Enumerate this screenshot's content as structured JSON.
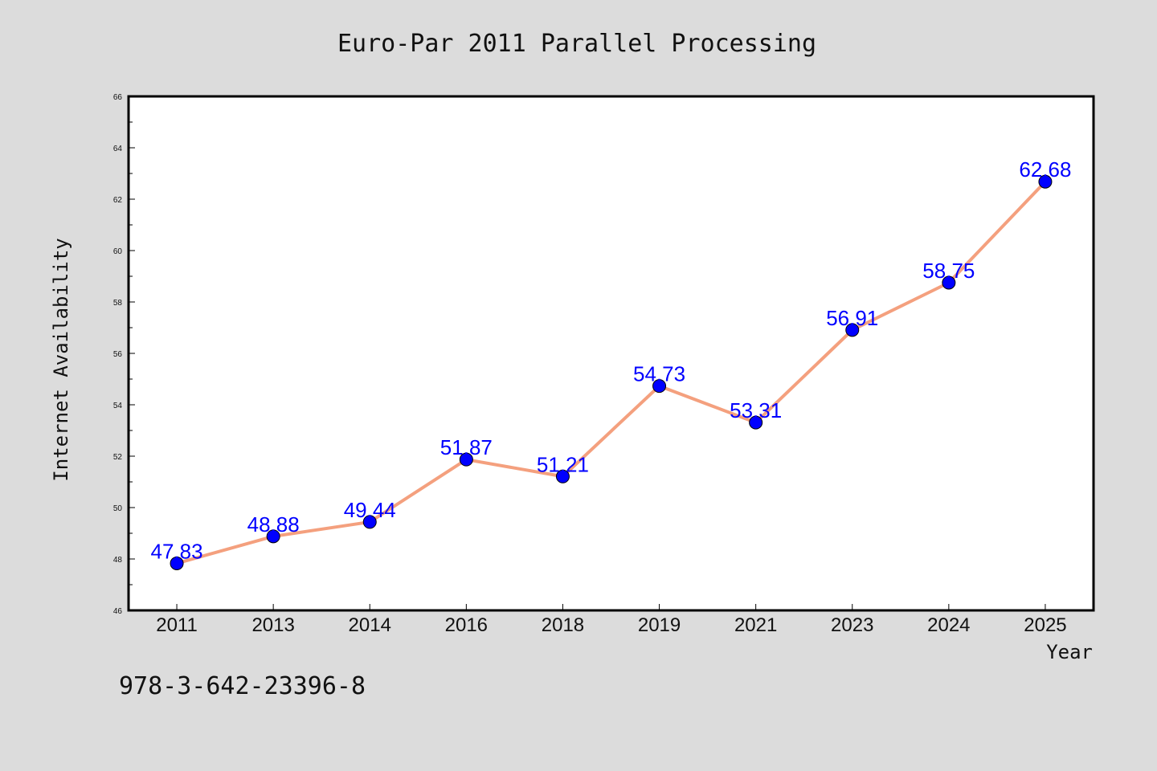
{
  "chart_data": {
    "type": "line",
    "title": "Euro-Par 2011 Parallel Processing",
    "xlabel": "Year",
    "ylabel": "Internet Availability",
    "categories": [
      "2011",
      "2013",
      "2014",
      "2016",
      "2018",
      "2019",
      "2021",
      "2023",
      "2024",
      "2025"
    ],
    "series": [
      {
        "values": [
          47.83,
          48.88,
          49.44,
          51.87,
          51.21,
          54.73,
          53.31,
          56.91,
          58.75,
          62.68
        ],
        "data_labels": [
          "47.83",
          "48.88",
          "49.44",
          "51.87",
          "51.21",
          "54.73",
          "53.31",
          "56.91",
          "58.75",
          "62.68"
        ]
      }
    ],
    "ylim": [
      46,
      66
    ],
    "yticks": [
      "46",
      "48",
      "50",
      "52",
      "54",
      "56",
      "58",
      "60",
      "62",
      "64",
      "66"
    ],
    "grid": false,
    "line_color": "#f4a07e",
    "marker_color": "#0000ff",
    "label_color": "#0000ff"
  },
  "footer": {
    "isbn": "978-3-642-23396-8"
  },
  "colors": {
    "background": "#dcdcdc",
    "plot_background": "#ffffff"
  }
}
